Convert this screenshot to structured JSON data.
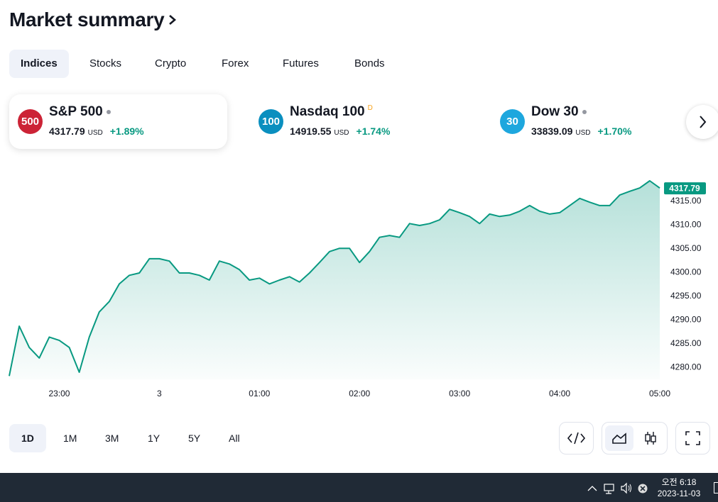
{
  "header": {
    "title": "Market summary"
  },
  "tabs": [
    "Indices",
    "Stocks",
    "Crypto",
    "Forex",
    "Futures",
    "Bonds"
  ],
  "cards": [
    {
      "badge": "500",
      "name": "S&P 500",
      "price": "4317.79",
      "currency": "USD",
      "change": "+1.89%"
    },
    {
      "badge": "100",
      "name": "Nasdaq 100",
      "marker": "D",
      "price": "14919.55",
      "currency": "USD",
      "change": "+1.74%"
    },
    {
      "badge": "30",
      "name": "Dow 30",
      "price": "33839.09",
      "currency": "USD",
      "change": "+1.70%"
    }
  ],
  "chart_data": {
    "type": "area",
    "color": "#089981",
    "grid": false,
    "x": [
      0,
      6,
      12,
      18,
      24,
      30,
      36,
      42,
      48,
      54,
      60,
      66,
      72,
      78,
      84,
      90,
      96,
      102,
      108,
      114,
      120,
      126,
      132,
      138,
      144,
      150,
      156,
      162,
      168,
      174,
      180,
      186,
      192,
      198,
      204,
      210,
      216,
      222,
      228,
      234,
      240,
      246,
      252,
      258,
      264,
      270,
      276,
      282,
      288,
      294,
      300,
      306,
      312,
      318,
      324,
      330,
      336,
      342,
      348,
      354,
      360,
      366,
      372,
      378,
      384,
      390
    ],
    "values": [
      4278.2,
      4288.7,
      4284.2,
      4282,
      4286.4,
      4285.7,
      4284.2,
      4279,
      4286.4,
      4291.7,
      4293.9,
      4297.6,
      4299.4,
      4299.9,
      4302.9,
      4302.9,
      4302.4,
      4299.9,
      4299.9,
      4299.4,
      4298.4,
      4302.4,
      4301.8,
      4300.6,
      4298.4,
      4298.8,
      4297.6,
      4298.4,
      4299.1,
      4298,
      4299.9,
      4302.1,
      4304.4,
      4305.1,
      4305.1,
      4302.1,
      4304.4,
      4307.4,
      4307.8,
      4307.4,
      4310.3,
      4309.9,
      4310.3,
      4311.1,
      4313.3,
      4312.6,
      4311.8,
      4310.3,
      4312.3,
      4311.8,
      4312.1,
      4312.9,
      4314.1,
      4312.9,
      4312.3,
      4312.6,
      4314.1,
      4315.6,
      4314.8,
      4314.1,
      4314.1,
      4316.3,
      4317.1,
      4317.8,
      4319.3,
      4317.79
    ],
    "xlim": [
      0,
      390
    ],
    "xticks": [
      {
        "value": 30,
        "label": "23:00"
      },
      {
        "value": 90,
        "label": "3"
      },
      {
        "value": 150,
        "label": "01:00"
      },
      {
        "value": 210,
        "label": "02:00"
      },
      {
        "value": 270,
        "label": "03:00"
      },
      {
        "value": 330,
        "label": "04:00"
      },
      {
        "value": 390,
        "label": "05:00"
      }
    ],
    "ylim": [
      4277.5,
      4320.8
    ],
    "yticks": [
      {
        "value": 4280,
        "label": "4280.00"
      },
      {
        "value": 4285,
        "label": "4285.00"
      },
      {
        "value": 4290,
        "label": "4290.00"
      },
      {
        "value": 4295,
        "label": "4295.00"
      },
      {
        "value": 4300,
        "label": "4300.00"
      },
      {
        "value": 4305,
        "label": "4305.00"
      },
      {
        "value": 4310,
        "label": "4310.00"
      },
      {
        "value": 4315,
        "label": "4315.00"
      }
    ]
  },
  "ranges": [
    "1D",
    "1M",
    "3M",
    "1Y",
    "5Y",
    "All"
  ],
  "taskbar": {
    "time": "오전 6:18",
    "date": "2023-11-03"
  }
}
